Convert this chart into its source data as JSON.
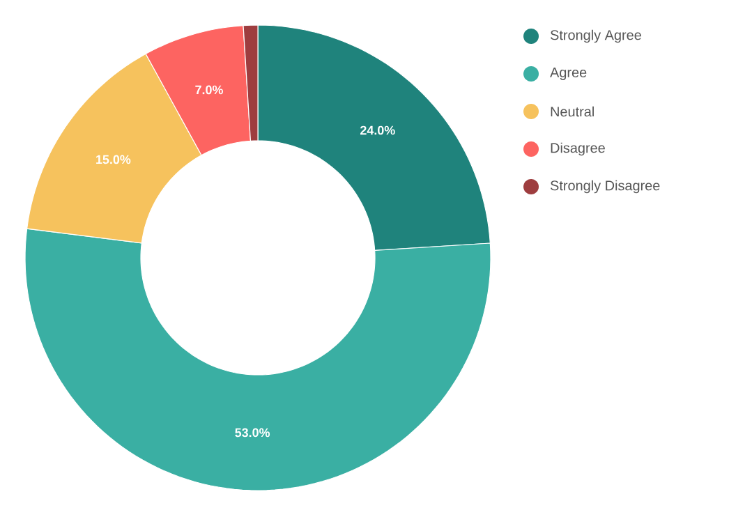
{
  "chart_data": {
    "type": "donut",
    "categories": [
      "Strongly Agree",
      "Agree",
      "Neutral",
      "Disagree",
      "Strongly Disagree"
    ],
    "values": [
      24,
      53,
      15,
      7,
      1
    ],
    "colors": [
      "#1f837c",
      "#3aafa3",
      "#f6c25d",
      "#fd6461",
      "#9e3d3f"
    ],
    "value_labels": [
      "24.0%",
      "53.0%",
      "15.0%",
      "7.0%",
      null
    ],
    "legend": "top right"
  }
}
